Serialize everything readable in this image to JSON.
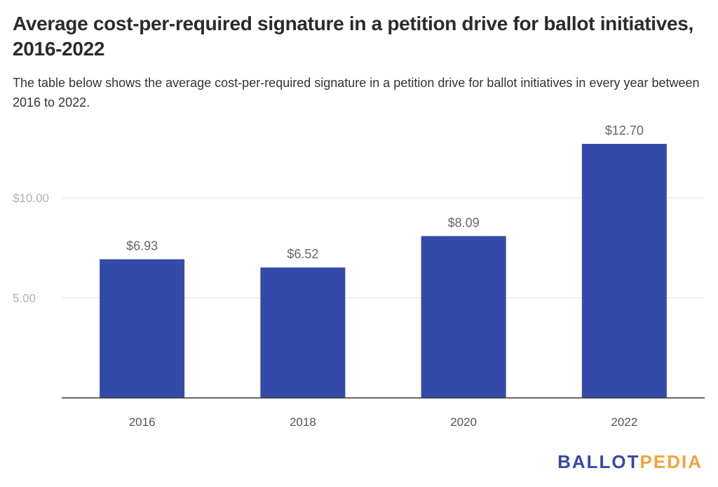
{
  "title": "Average cost-per-required signature in a petition drive for ballot initiatives, 2016-2022",
  "subtitle": "The table below shows the average cost-per-required signature in a petition drive for ballot initiatives in every year between 2016 to 2022.",
  "logo": {
    "part1": "BALLOT",
    "part2": "PEDIA"
  },
  "colors": {
    "bar": "#334aa8",
    "grid": "#e2e2e2",
    "axis": "#333333",
    "logo_blue": "#3449a8",
    "logo_orange": "#f2a43a"
  },
  "chart_data": {
    "type": "bar",
    "categories": [
      "2016",
      "2018",
      "2020",
      "2022"
    ],
    "values": [
      6.93,
      6.52,
      8.09,
      12.7
    ],
    "data_labels": [
      "$6.93",
      "$6.52",
      "$8.09",
      "$12.70"
    ],
    "y_ticks": [
      5,
      10
    ],
    "y_tick_labels": [
      "5.00",
      "$10.00"
    ],
    "ylim": [
      0,
      15
    ],
    "grid": true,
    "legend": "none"
  }
}
